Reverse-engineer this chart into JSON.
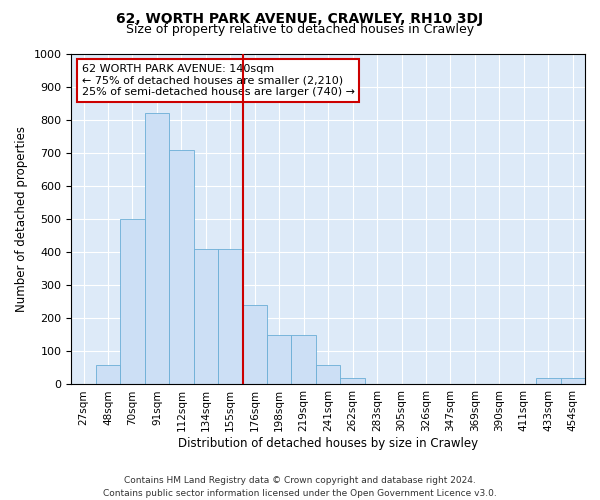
{
  "title": "62, WORTH PARK AVENUE, CRAWLEY, RH10 3DJ",
  "subtitle": "Size of property relative to detached houses in Crawley",
  "xlabel": "Distribution of detached houses by size in Crawley",
  "ylabel": "Number of detached properties",
  "bar_labels": [
    "27sqm",
    "48sqm",
    "70sqm",
    "91sqm",
    "112sqm",
    "134sqm",
    "155sqm",
    "176sqm",
    "198sqm",
    "219sqm",
    "241sqm",
    "262sqm",
    "283sqm",
    "305sqm",
    "326sqm",
    "347sqm",
    "369sqm",
    "390sqm",
    "411sqm",
    "433sqm",
    "454sqm"
  ],
  "bar_heights": [
    0,
    60,
    500,
    820,
    710,
    410,
    410,
    240,
    150,
    150,
    60,
    20,
    0,
    0,
    0,
    0,
    0,
    0,
    0,
    20,
    20
  ],
  "bar_color": "#ccdff5",
  "bar_edgecolor": "#6aaed6",
  "vline_x": 6.5,
  "vline_color": "#cc0000",
  "annotation_text": "62 WORTH PARK AVENUE: 140sqm\n← 75% of detached houses are smaller (2,210)\n25% of semi-detached houses are larger (740) →",
  "annotation_box_color": "#ffffff",
  "annotation_box_edgecolor": "#cc0000",
  "ylim": [
    0,
    1000
  ],
  "yticks": [
    0,
    100,
    200,
    300,
    400,
    500,
    600,
    700,
    800,
    900,
    1000
  ],
  "background_color": "#ddeaf8",
  "footer_line1": "Contains HM Land Registry data © Crown copyright and database right 2024.",
  "footer_line2": "Contains public sector information licensed under the Open Government Licence v3.0.",
  "title_fontsize": 10,
  "subtitle_fontsize": 9
}
